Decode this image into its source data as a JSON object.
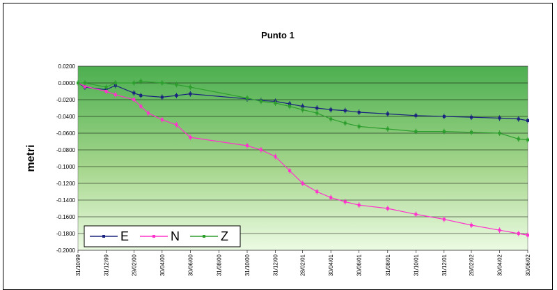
{
  "chart_data": {
    "type": "line",
    "title": "Punto 1",
    "ylabel": "metri",
    "xlabel": "",
    "ylim": [
      -0.2,
      0.02
    ],
    "y_ticks": [
      0.02,
      0,
      -0.02,
      -0.04,
      -0.06,
      -0.08,
      -0.1,
      -0.12,
      -0.14,
      -0.16,
      -0.18,
      -0.2
    ],
    "y_tick_labels": [
      "0.0200",
      "0.0000",
      "-0.0200",
      "-0.0400",
      "-0.0600",
      "-0.0800",
      "-0.1000",
      "-0.1200",
      "-0.1400",
      "-0.1600",
      "-0.1800",
      "-0.2000"
    ],
    "x_tick_labels": [
      "31/10/99",
      "31/12/99",
      "29/02/00",
      "30/04/00",
      "30/06/00",
      "31/08/00",
      "31/10/00",
      "31/12/00",
      "28/02/01",
      "30/04/01",
      "30/06/01",
      "31/08/01",
      "31/10/01",
      "31/12/01",
      "28/02/02",
      "30/04/02",
      "30/06/02"
    ],
    "grid": true,
    "legend_position": "bottom-left",
    "series": [
      {
        "name": "E",
        "color": "#1a237e",
        "points": [
          [
            "31/10/99",
            0.0
          ],
          [
            "15/11/99",
            -0.005
          ],
          [
            "31/12/99",
            -0.008
          ],
          [
            "20/01/00",
            -0.003
          ],
          [
            "29/02/00",
            -0.012
          ],
          [
            "15/03/00",
            -0.015
          ],
          [
            "30/04/00",
            -0.017
          ],
          [
            "31/05/00",
            -0.015
          ],
          [
            "30/06/00",
            -0.013
          ],
          [
            "31/10/00",
            -0.019
          ],
          [
            "30/11/00",
            -0.021
          ],
          [
            "31/12/00",
            -0.022
          ],
          [
            "31/01/01",
            -0.025
          ],
          [
            "28/02/01",
            -0.028
          ],
          [
            "31/03/01",
            -0.03
          ],
          [
            "30/04/01",
            -0.032
          ],
          [
            "31/05/01",
            -0.033
          ],
          [
            "30/06/01",
            -0.035
          ],
          [
            "31/08/01",
            -0.037
          ],
          [
            "31/10/01",
            -0.039
          ],
          [
            "31/12/01",
            -0.04
          ],
          [
            "28/02/02",
            -0.041
          ],
          [
            "30/04/02",
            -0.042
          ],
          [
            "10/06/02",
            -0.043
          ],
          [
            "30/06/02",
            -0.045
          ]
        ]
      },
      {
        "name": "N",
        "color": "#ff33cc",
        "points": [
          [
            "31/10/99",
            0.0
          ],
          [
            "15/11/99",
            -0.004
          ],
          [
            "31/12/99",
            -0.01
          ],
          [
            "20/01/00",
            -0.014
          ],
          [
            "29/02/00",
            -0.02
          ],
          [
            "15/03/00",
            -0.028
          ],
          [
            "31/03/00",
            -0.036
          ],
          [
            "30/04/00",
            -0.044
          ],
          [
            "31/05/00",
            -0.05
          ],
          [
            "30/06/00",
            -0.065
          ],
          [
            "31/10/00",
            -0.075
          ],
          [
            "30/11/00",
            -0.08
          ],
          [
            "31/12/00",
            -0.088
          ],
          [
            "31/01/01",
            -0.105
          ],
          [
            "28/02/01",
            -0.12
          ],
          [
            "31/03/01",
            -0.13
          ],
          [
            "30/04/01",
            -0.137
          ],
          [
            "31/05/01",
            -0.142
          ],
          [
            "30/06/01",
            -0.146
          ],
          [
            "31/08/01",
            -0.15
          ],
          [
            "31/10/01",
            -0.157
          ],
          [
            "31/12/01",
            -0.163
          ],
          [
            "28/02/02",
            -0.17
          ],
          [
            "30/04/02",
            -0.176
          ],
          [
            "10/06/02",
            -0.18
          ],
          [
            "30/06/02",
            -0.182
          ]
        ]
      },
      {
        "name": "Z",
        "color": "#2e9e2e",
        "points": [
          [
            "31/10/99",
            0.0
          ],
          [
            "15/11/99",
            0.0
          ],
          [
            "31/12/99",
            -0.005
          ],
          [
            "20/01/00",
            0.0
          ],
          [
            "29/02/00",
            0.0
          ],
          [
            "15/03/00",
            0.002
          ],
          [
            "30/04/00",
            0.0
          ],
          [
            "31/05/00",
            -0.002
          ],
          [
            "30/06/00",
            -0.005
          ],
          [
            "31/10/00",
            -0.018
          ],
          [
            "30/11/00",
            -0.022
          ],
          [
            "31/12/00",
            -0.024
          ],
          [
            "31/01/01",
            -0.028
          ],
          [
            "28/02/01",
            -0.032
          ],
          [
            "31/03/01",
            -0.036
          ],
          [
            "30/04/01",
            -0.043
          ],
          [
            "31/05/01",
            -0.048
          ],
          [
            "30/06/01",
            -0.052
          ],
          [
            "31/08/01",
            -0.055
          ],
          [
            "31/10/01",
            -0.058
          ],
          [
            "31/12/01",
            -0.058
          ],
          [
            "28/02/02",
            -0.059
          ],
          [
            "30/04/02",
            -0.06
          ],
          [
            "10/06/02",
            -0.067
          ],
          [
            "30/06/02",
            -0.068
          ]
        ]
      }
    ]
  }
}
